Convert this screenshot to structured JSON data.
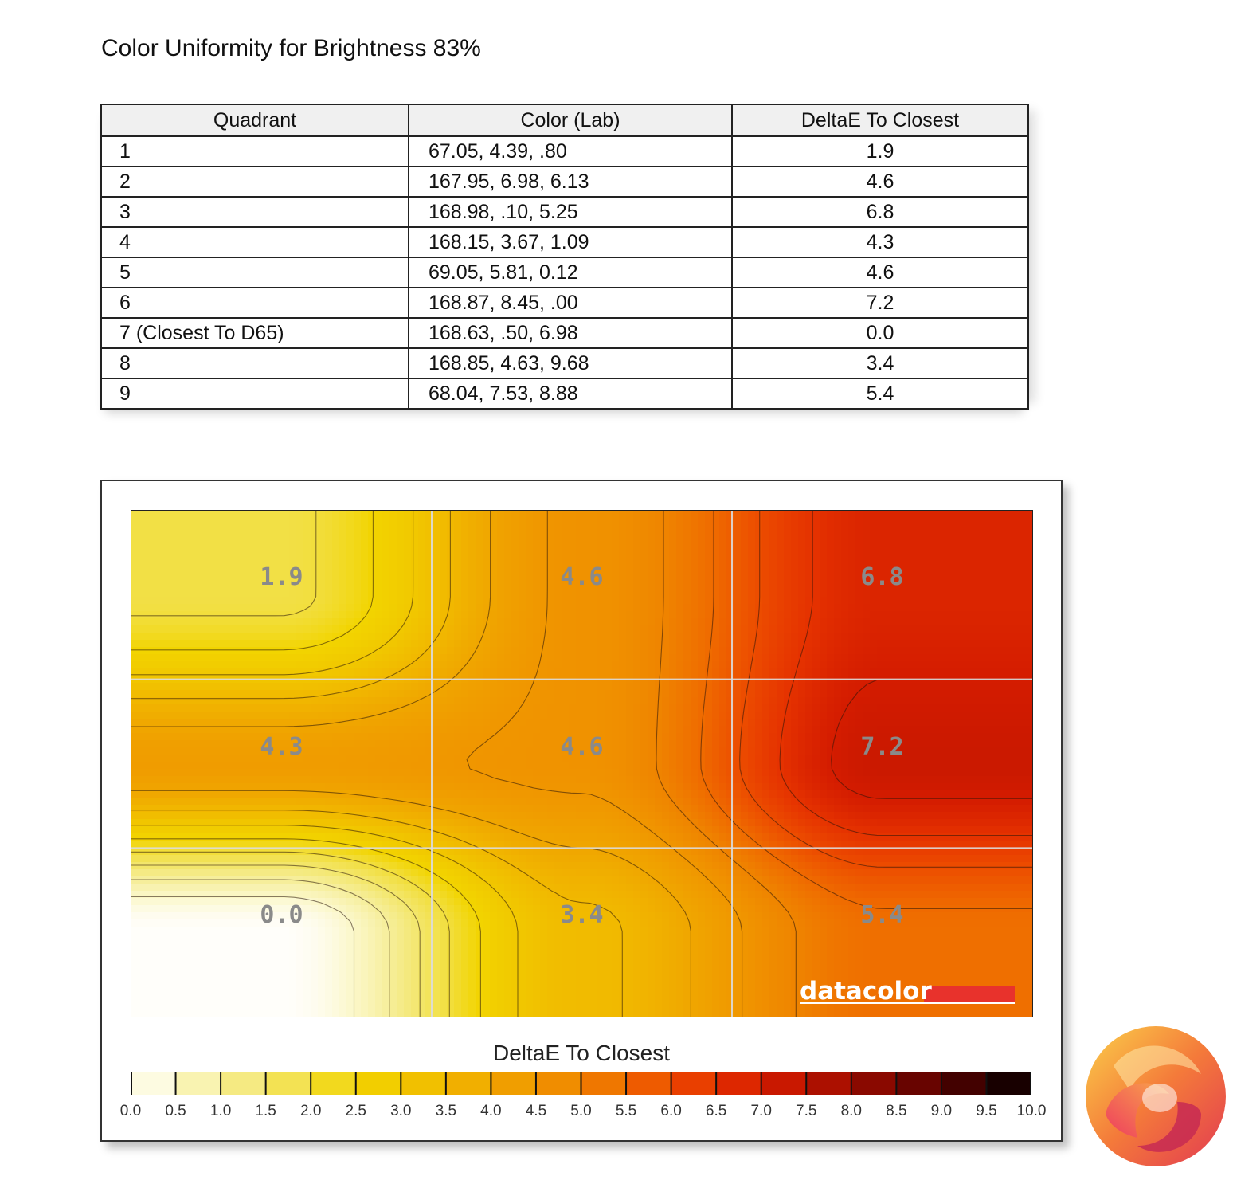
{
  "title": "Color Uniformity for Brightness 83%",
  "table": {
    "headers": [
      "Quadrant",
      "Color (Lab)",
      "DeltaE To Closest"
    ],
    "rows": [
      [
        "1",
        "67.05,   4.39,   .80",
        "1.9"
      ],
      [
        "2",
        "167.95,  6.98,  6.13",
        "4.6"
      ],
      [
        "3",
        "168.98,    .10,  5.25",
        "6.8"
      ],
      [
        "4",
        "168.15,  3.67,  1.09",
        "4.3"
      ],
      [
        "5",
        "69.05,  5.81,  0.12",
        "4.6"
      ],
      [
        "6",
        "168.87,  8.45,   .00",
        "7.2"
      ],
      [
        "7 (Closest To D65)",
        "168.63,    .50,  6.98",
        "0.0"
      ],
      [
        "8",
        "168.85,  4.63,  9.68",
        "3.4"
      ],
      [
        "9",
        "68.04,  7.53,  8.88",
        "5.4"
      ]
    ]
  },
  "chart_data": {
    "type": "heatmap",
    "rows": 3,
    "cols": 3,
    "values": [
      [
        1.9,
        4.6,
        6.8
      ],
      [
        4.3,
        4.6,
        7.2
      ],
      [
        0.0,
        3.4,
        5.4
      ]
    ],
    "cell_labels": [
      [
        "1.9",
        "4.6",
        "6.8"
      ],
      [
        "4.3",
        "4.6",
        "7.2"
      ],
      [
        "0.0",
        "3.4",
        "5.4"
      ]
    ],
    "colorbar": {
      "title": "DeltaE To Closest",
      "range": [
        0,
        10
      ],
      "ticks": [
        "0.0",
        "0.5",
        "1.0",
        "1.5",
        "2.0",
        "2.5",
        "3.0",
        "3.5",
        "4.0",
        "4.5",
        "5.0",
        "5.5",
        "6.0",
        "6.5",
        "7.0",
        "7.5",
        "8.0",
        "8.5",
        "9.0",
        "9.5",
        "10.0"
      ],
      "colors": [
        "#fffefa",
        "#fbf7c8",
        "#f6ee9a",
        "#f3e66a",
        "#f2de3c",
        "#f2d400",
        "#f1c800",
        "#f1b800",
        "#f0a600",
        "#f09600",
        "#ef8400",
        "#ef6a00",
        "#ec4c00",
        "#e53200",
        "#d41c00",
        "#bd1400",
        "#9a0c00",
        "#7a0600",
        "#560200",
        "#300000",
        "#000000"
      ]
    },
    "grid": true,
    "brand": "datacolor"
  }
}
